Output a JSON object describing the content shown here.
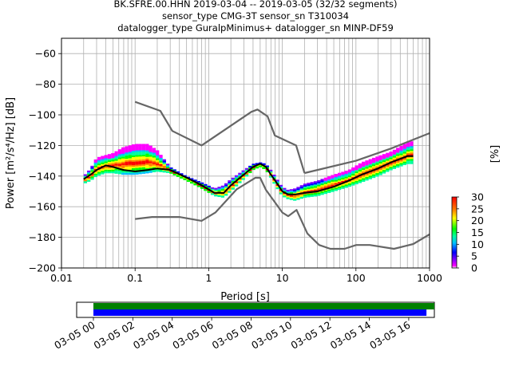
{
  "title_lines": [
    "BK.SFRE.00.HHN   2019-03-04 -- 2019-03-05  (32/32 segments)",
    "sensor_type CMG-3T sensor_sn T310034",
    "datalogger_type GuralpMinimus+ datalogger_sn MINP-DF59"
  ],
  "colorbar": {
    "label": "[%]",
    "ticks": [
      "30",
      "25",
      "20",
      "15",
      "10",
      "5",
      "0"
    ],
    "range": [
      0,
      30
    ]
  },
  "timeline": {
    "tick_labels": [
      "03-05 00",
      "03-05 02",
      "03-05 04",
      "03-05 06",
      "03-05 08",
      "03-05 10",
      "03-05 12",
      "03-05 14",
      "03-05 16"
    ],
    "bars": [
      {
        "name": "data",
        "color": "#008000",
        "start_hour": 0,
        "end_hour": 17.3
      },
      {
        "name": "psd",
        "color": "#0000ff",
        "start_hour": 0,
        "end_hour": 16.9
      }
    ],
    "axis_range_hours": [
      -0.85,
      17.3
    ]
  },
  "chart_data": {
    "type": "line",
    "xlabel": "Period [s]",
    "ylabel": "Power [m²/s⁴/Hz] [dB]",
    "x_scale": "log",
    "xlim": [
      0.01,
      1000
    ],
    "ylim": [
      -200,
      -50
    ],
    "x_ticks": [
      "0.01",
      "0.1",
      "1",
      "10",
      "100",
      "1000"
    ],
    "y_ticks": [
      "−60",
      "−80",
      "−100",
      "−120",
      "−140",
      "−160",
      "−180",
      "−200"
    ],
    "grid": true,
    "series": [
      {
        "role": "noise-model-high",
        "color": "#666666",
        "x": [
          0.1,
          0.22,
          0.32,
          0.8,
          3.8,
          4.6,
          6.3,
          7.9,
          15.4,
          20
        ],
        "y": [
          -91.5,
          -97.4,
          -110.5,
          -120,
          -98,
          -96.5,
          -101,
          -113.5,
          -120,
          -138
        ]
      },
      {
        "role": "noise-model-high-long",
        "color": "#666666",
        "x": [
          20,
          100,
          300,
          1000
        ],
        "y": [
          -138,
          -130,
          -122,
          -112
        ]
      },
      {
        "role": "noise-model-low",
        "color": "#666666",
        "x": [
          0.1,
          0.17,
          0.4,
          0.8,
          1.24,
          2.4,
          4.3,
          5,
          6,
          10,
          12,
          15.6,
          21.9,
          31.6,
          45,
          70,
          101,
          154,
          328,
          600,
          1000
        ],
        "y": [
          -168,
          -166.7,
          -166.7,
          -169.2,
          -163.7,
          -148.6,
          -141.1,
          -141.1,
          -149,
          -163.8,
          -166.2,
          -162.1,
          -177.5,
          -185,
          -187.5,
          -187.5,
          -185,
          -185,
          -187.5,
          -184.4,
          -178
        ]
      },
      {
        "role": "psd-mode",
        "color": "#000000",
        "x": [
          0.02,
          0.025,
          0.03,
          0.04,
          0.05,
          0.07,
          0.1,
          0.15,
          0.2,
          0.3,
          0.5,
          0.8,
          1.2,
          1.6,
          2,
          3,
          4,
          5,
          6,
          7,
          8,
          10,
          12,
          15,
          20,
          30,
          50,
          80,
          120,
          200,
          300,
          500,
          600
        ],
        "y": [
          -142,
          -139,
          -136,
          -133,
          -134,
          -136,
          -137,
          -136,
          -135,
          -136,
          -141,
          -146,
          -151,
          -151,
          -146,
          -139,
          -134,
          -132,
          -134,
          -139,
          -143,
          -150,
          -152,
          -152,
          -151,
          -150,
          -147,
          -143,
          -139,
          -135,
          -131,
          -127,
          -127
        ]
      }
    ],
    "psd_density": {
      "colormap": "pqlx",
      "upper_bound": {
        "x": [
          0.02,
          0.025,
          0.03,
          0.035,
          0.05,
          0.07,
          0.1,
          0.15,
          0.2,
          0.3,
          0.5,
          0.8,
          1.2,
          1.6,
          2,
          3,
          4,
          5,
          6,
          7,
          8,
          10,
          12,
          15,
          20,
          30,
          50,
          80,
          120,
          200,
          300,
          500,
          600
        ],
        "y": [
          -140,
          -135,
          -128,
          -127,
          -125,
          -121,
          -119,
          -119,
          -123,
          -134,
          -140,
          -144,
          -148,
          -146,
          -142,
          -136,
          -132,
          -131,
          -132,
          -136,
          -140,
          -147,
          -149,
          -148,
          -145,
          -143,
          -139,
          -136,
          -131,
          -127,
          -124,
          -118,
          -117
        ]
      },
      "lower_bound": {
        "x": [
          0.02,
          0.025,
          0.03,
          0.04,
          0.05,
          0.07,
          0.1,
          0.15,
          0.2,
          0.3,
          0.5,
          0.8,
          1.2,
          1.6,
          2,
          3,
          4,
          5,
          6,
          7,
          8,
          10,
          12,
          15,
          20,
          30,
          50,
          80,
          120,
          200,
          300,
          500,
          600
        ],
        "y": [
          -145,
          -143,
          -140,
          -138,
          -138,
          -139,
          -139,
          -138,
          -137,
          -138,
          -143,
          -148,
          -153,
          -154,
          -150,
          -142,
          -136,
          -134,
          -136,
          -141,
          -146,
          -153,
          -155,
          -156,
          -154,
          -153,
          -150,
          -147,
          -144,
          -140,
          -136,
          -132,
          -132
        ]
      }
    }
  }
}
